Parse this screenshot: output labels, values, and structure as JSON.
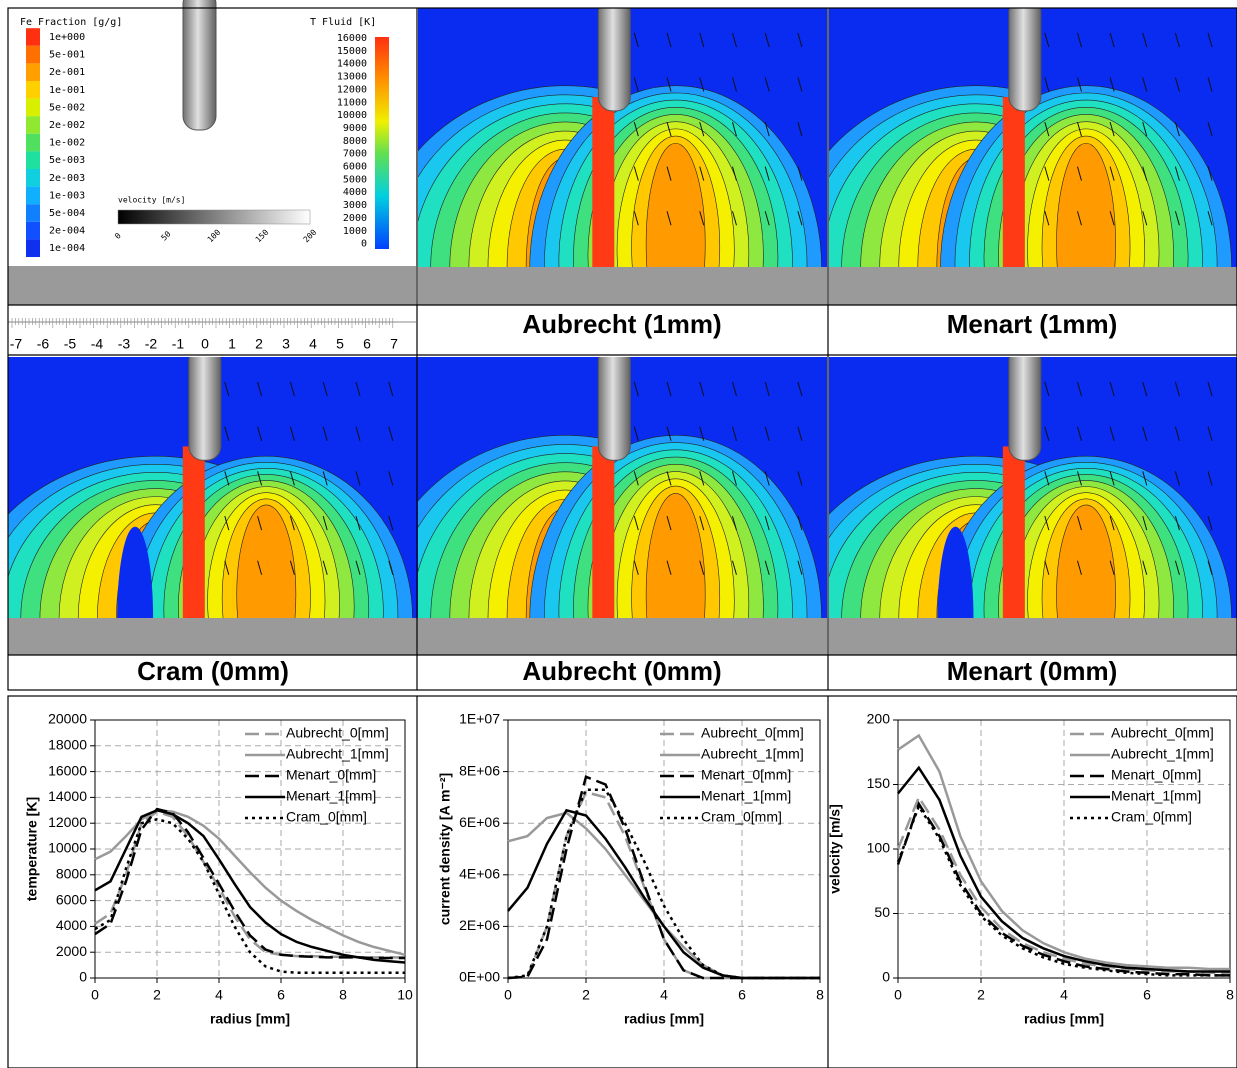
{
  "legend_panel": {
    "fe_title": "Fe  Fraction  [g/g]",
    "fe_labels": [
      "1e+000",
      "5e-001",
      "2e-001",
      "1e-001",
      "5e-002",
      "2e-002",
      "1e-002",
      "5e-003",
      "2e-003",
      "1e-003",
      "5e-004",
      "2e-004",
      "1e-004"
    ],
    "t_title": "T  Fluid  [K]",
    "t_labels": [
      16000,
      15000,
      14000,
      13000,
      12000,
      11000,
      10000,
      9000,
      8000,
      7000,
      6000,
      5000,
      4000,
      3000,
      2000,
      1000,
      0
    ],
    "velocity_title": "velocity [m/s]",
    "velocity_labels": [
      0,
      50,
      100,
      150,
      200
    ]
  },
  "ruler": {
    "labels": [
      -7,
      -6,
      -5,
      -4,
      -3,
      -2,
      -1,
      0,
      1,
      2,
      3,
      4,
      5,
      6,
      7
    ]
  },
  "panels": [
    {
      "caption": "Aubrecht (1mm)"
    },
    {
      "caption": "Menart (1mm)"
    },
    {
      "caption": "Cram (0mm)"
    },
    {
      "caption": "Aubrecht (0mm)"
    },
    {
      "caption": "Menart (0mm)"
    }
  ],
  "chart_data": [
    {
      "type": "line",
      "x_label": "radius [mm]",
      "y_label": "temperature [K]",
      "grid": true,
      "legend": "top-right",
      "xlim": [
        0,
        10
      ],
      "xticks": [
        0,
        2,
        4,
        6,
        8,
        10
      ],
      "ylim": [
        0,
        20000
      ],
      "yticks": [
        0,
        2000,
        4000,
        6000,
        8000,
        10000,
        12000,
        14000,
        16000,
        18000,
        20000
      ],
      "x": [
        0,
        0.5,
        1,
        1.5,
        2,
        2.5,
        3,
        3.5,
        4,
        4.5,
        5,
        5.5,
        6,
        6.5,
        7,
        7.5,
        8,
        8.5,
        9,
        9.5,
        10
      ],
      "series": [
        {
          "name": "Aubrecht_0[mm]",
          "color": "#999999",
          "dash": "long",
          "values": [
            4200,
            5000,
            8000,
            12000,
            12900,
            12500,
            11000,
            9000,
            7000,
            4800,
            3000,
            2000,
            1800,
            1700,
            1700,
            1650,
            1650,
            1600,
            1600,
            1600,
            1600
          ]
        },
        {
          "name": "Aubrecht_1[mm]",
          "color": "#999999",
          "dash": "solid",
          "values": [
            9200,
            9800,
            11000,
            12300,
            13000,
            12900,
            12500,
            11800,
            10800,
            9500,
            8200,
            7000,
            6000,
            5200,
            4500,
            3900,
            3300,
            2800,
            2400,
            2100,
            1800
          ]
        },
        {
          "name": "Menart_0[mm]",
          "color": "#000000",
          "dash": "long",
          "values": [
            3400,
            4200,
            7500,
            11500,
            13100,
            12800,
            11300,
            9300,
            7300,
            5200,
            3300,
            2200,
            1800,
            1700,
            1650,
            1600,
            1600,
            1600,
            1550,
            1550,
            1550
          ]
        },
        {
          "name": "Menart_1[mm]",
          "color": "#000000",
          "dash": "solid",
          "values": [
            6800,
            7500,
            10000,
            12500,
            13000,
            12700,
            12000,
            11000,
            9200,
            7300,
            5500,
            4300,
            3400,
            2800,
            2400,
            2100,
            1800,
            1600,
            1400,
            1300,
            1200
          ]
        },
        {
          "name": "Cram_0[mm]",
          "color": "#000000",
          "dash": "dot",
          "values": [
            3800,
            4500,
            8500,
            12000,
            12300,
            12000,
            10800,
            9000,
            6500,
            4000,
            2000,
            900,
            500,
            400,
            400,
            400,
            400,
            400,
            400,
            400,
            400
          ]
        }
      ]
    },
    {
      "type": "line",
      "x_label": "radius [mm]",
      "y_label": "current density [A m⁻²]",
      "grid": true,
      "legend": "top-right",
      "xlim": [
        0,
        8
      ],
      "xticks": [
        0,
        2,
        4,
        6,
        8
      ],
      "ylim": [
        0,
        10000000
      ],
      "yticks": [
        {
          "value": 0,
          "label": "0E+00"
        },
        {
          "value": 2000000,
          "label": "2E+06"
        },
        {
          "value": 4000000,
          "label": "4E+06"
        },
        {
          "value": 6000000,
          "label": "6E+06"
        },
        {
          "value": 8000000,
          "label": "8E+06"
        },
        {
          "value": 10000000,
          "label": "1E+07"
        }
      ],
      "x": [
        0,
        0.5,
        1,
        1.5,
        2,
        2.5,
        3,
        3.5,
        4,
        4.5,
        5,
        5.5,
        6,
        6.5,
        7,
        7.5,
        8
      ],
      "series": [
        {
          "name": "Aubrecht_0[mm]",
          "color": "#999999",
          "dash": "long",
          "values": [
            0,
            50000,
            2000000,
            5500000,
            7200000,
            7000000,
            5500000,
            3500000,
            1500000,
            300000,
            0,
            0,
            0,
            0,
            0,
            0,
            0
          ]
        },
        {
          "name": "Aubrecht_1[mm]",
          "color": "#999999",
          "dash": "solid",
          "values": [
            5300000,
            5500000,
            6200000,
            6400000,
            5800000,
            5000000,
            4000000,
            3000000,
            2000000,
            1200000,
            500000,
            100000,
            0,
            0,
            0,
            0,
            0
          ]
        },
        {
          "name": "Menart_0[mm]",
          "color": "#000000",
          "dash": "long",
          "values": [
            0,
            50000,
            1500000,
            5000000,
            7800000,
            7500000,
            5800000,
            3600000,
            1500000,
            300000,
            0,
            0,
            0,
            0,
            0,
            0,
            0
          ]
        },
        {
          "name": "Menart_1[mm]",
          "color": "#000000",
          "dash": "solid",
          "values": [
            2600000,
            3500000,
            5200000,
            6500000,
            6300000,
            5400000,
            4300000,
            3100000,
            2000000,
            1000000,
            400000,
            100000,
            0,
            0,
            0,
            0,
            0
          ]
        },
        {
          "name": "Cram_0[mm]",
          "color": "#000000",
          "dash": "dot",
          "values": [
            0,
            100000,
            2000000,
            5500000,
            7300000,
            7300000,
            6000000,
            4500000,
            2800000,
            1500000,
            500000,
            100000,
            0,
            0,
            0,
            0,
            0
          ]
        }
      ]
    },
    {
      "type": "line",
      "x_label": "radius [mm]",
      "y_label": "velocity [m/s]",
      "grid": true,
      "legend": "top-right",
      "xlim": [
        0,
        8
      ],
      "xticks": [
        0,
        2,
        4,
        6,
        8
      ],
      "ylim": [
        0,
        200
      ],
      "yticks": [
        0,
        50,
        100,
        150,
        200
      ],
      "x": [
        0,
        0.5,
        1,
        1.5,
        2,
        2.5,
        3,
        3.5,
        4,
        4.5,
        5,
        5.5,
        6,
        6.5,
        7,
        7.5,
        8
      ],
      "series": [
        {
          "name": "Aubrecht_0[mm]",
          "color": "#999999",
          "dash": "long",
          "values": [
            100,
            140,
            115,
            80,
            55,
            38,
            27,
            20,
            15,
            11,
            9,
            7,
            6,
            5,
            5,
            4,
            4
          ]
        },
        {
          "name": "Aubrecht_1[mm]",
          "color": "#999999",
          "dash": "solid",
          "values": [
            177,
            188,
            160,
            110,
            75,
            52,
            37,
            27,
            20,
            15,
            12,
            10,
            9,
            8,
            8,
            7,
            7
          ]
        },
        {
          "name": "Menart_0[mm]",
          "color": "#000000",
          "dash": "long",
          "values": [
            88,
            135,
            110,
            75,
            50,
            35,
            25,
            18,
            13,
            9,
            7,
            5,
            4,
            3,
            3,
            2,
            2
          ]
        },
        {
          "name": "Menart_1[mm]",
          "color": "#000000",
          "dash": "solid",
          "values": [
            143,
            163,
            138,
            95,
            63,
            44,
            31,
            23,
            17,
            13,
            10,
            8,
            7,
            6,
            5,
            5,
            5
          ]
        },
        {
          "name": "Cram_0[mm]",
          "color": "#000000",
          "dash": "dot",
          "values": [
            90,
            133,
            108,
            72,
            48,
            33,
            23,
            16,
            11,
            8,
            6,
            4,
            3,
            2,
            2,
            2,
            2
          ]
        }
      ]
    }
  ]
}
